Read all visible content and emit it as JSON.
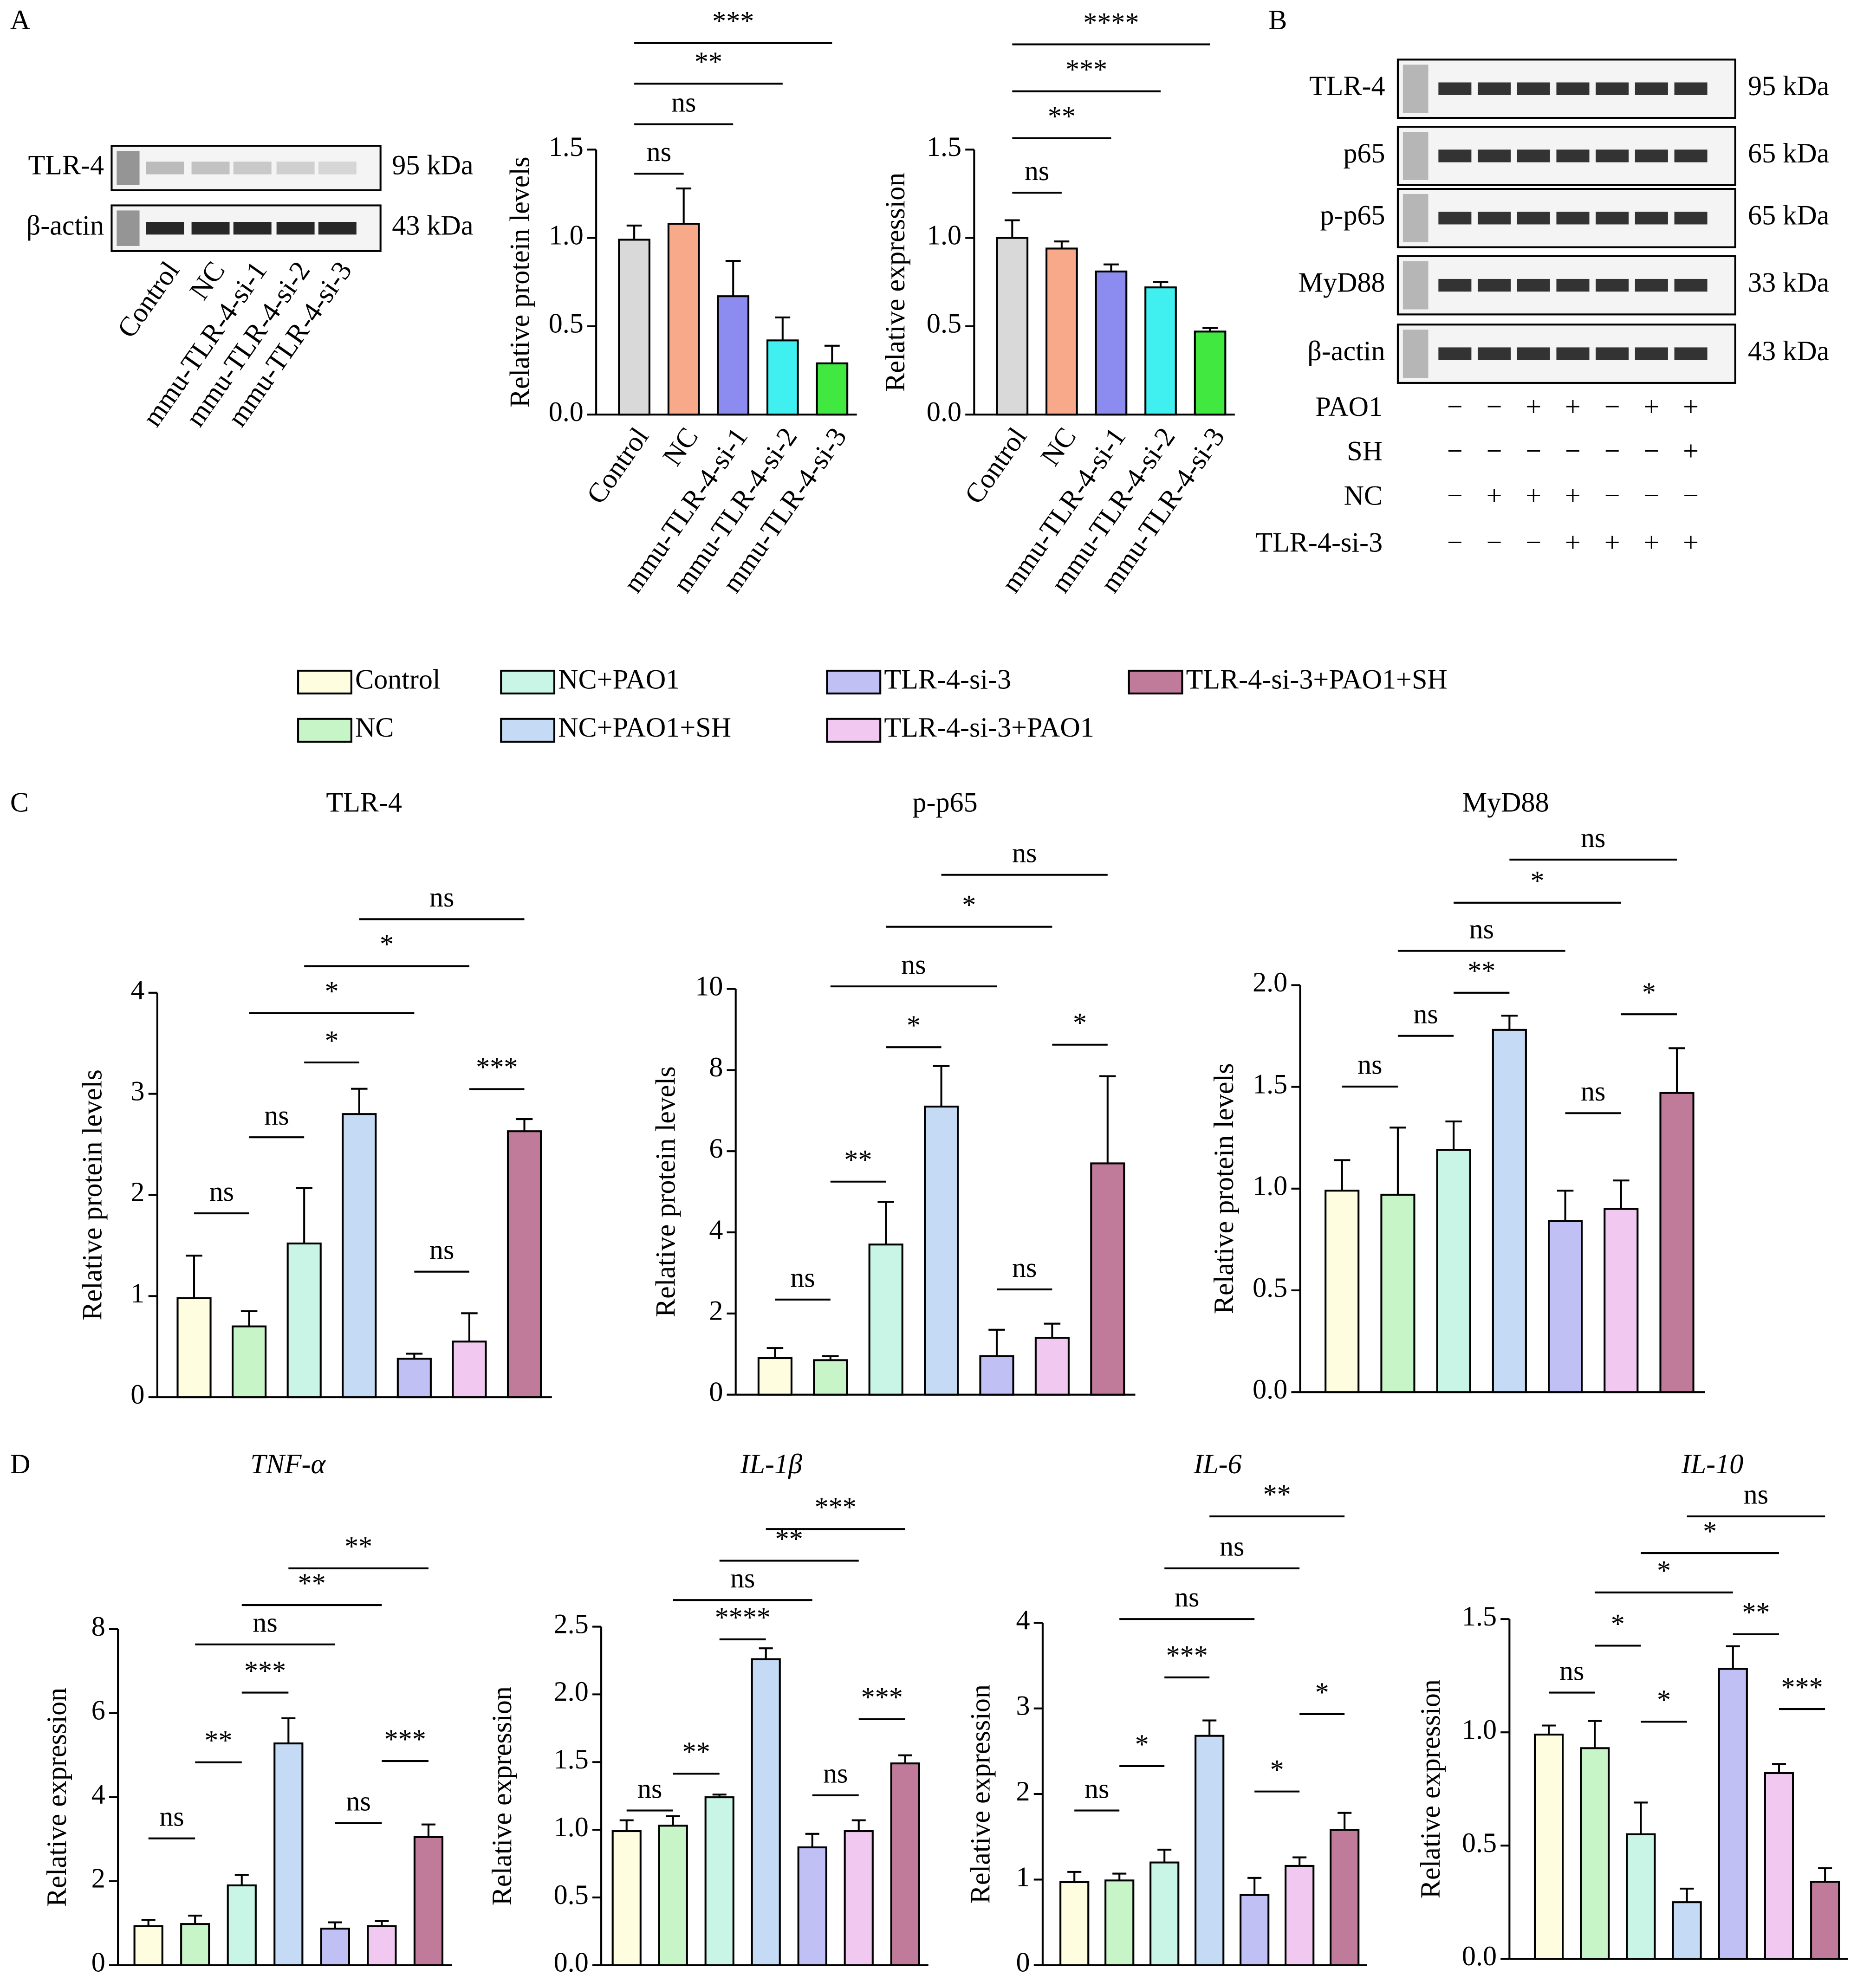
{
  "panel_labels": [
    "A",
    "B",
    "C",
    "D"
  ],
  "blot_a": {
    "proteins": [
      "TLR-4",
      "β-actin"
    ],
    "sizes": [
      "95 kDa",
      "43 kDa"
    ],
    "lanes": [
      "Control",
      "NC",
      "mmu-TLR-4-si-1",
      "mmu-TLR-4-si-2",
      "mmu-TLR-4-si-3"
    ]
  },
  "blot_b": {
    "proteins": [
      "TLR-4",
      "p65",
      "p-p65",
      "MyD88",
      "β-actin"
    ],
    "sizes": [
      "95 kDa",
      "65 kDa",
      "65 kDa",
      "33 kDa",
      "43 kDa"
    ],
    "treatments": [
      {
        "name": "PAO1",
        "signs": [
          "−",
          "−",
          "+",
          "+",
          "−",
          "+",
          "+"
        ]
      },
      {
        "name": "SH",
        "signs": [
          "−",
          "−",
          "−",
          "−",
          "−",
          "−",
          "+"
        ]
      },
      {
        "name": "NC",
        "signs": [
          "−",
          "+",
          "+",
          "+",
          "−",
          "−",
          "−"
        ]
      },
      {
        "name": "TLR-4-si-3",
        "signs": [
          "−",
          "−",
          "−",
          "+",
          "+",
          "+",
          "+"
        ]
      }
    ]
  },
  "legend": {
    "labels": [
      "Control",
      "NC",
      "NC+PAO1",
      "NC+PAO1+SH",
      "TLR-4-si-3",
      "TLR-4-si-3+PAO1",
      "TLR-4-si-3+PAO1+SH"
    ],
    "colors": [
      "#fffde0",
      "#c8f5c8",
      "#c8f5e6",
      "#c5daf5",
      "#c0c0f5",
      "#f0c8f0",
      "#c07a9a"
    ]
  },
  "chart_data": [
    {
      "type": "bar",
      "y_label": "Relative protein levels",
      "categories": [
        "Control",
        "NC",
        "mmu-TLR-4-si-1",
        "mmu-TLR-4-si-2",
        "mmu-TLR-4-si-3"
      ],
      "values": [
        0.99,
        1.08,
        0.67,
        0.42,
        0.29
      ],
      "errors": [
        0.08,
        0.2,
        0.2,
        0.13,
        0.1
      ],
      "colors": [
        "#d9d9d9",
        "#f8a98a",
        "#8c8cf0",
        "#40f0f0",
        "#40e840"
      ],
      "ylim": [
        0,
        1.5
      ],
      "yticks": [
        {
          "value": 0,
          "label": "0.0"
        },
        0.5,
        {
          "value": 1,
          "label": "1.0"
        },
        1.5
      ],
      "annotations": [
        "ns",
        "ns",
        "**",
        "***"
      ]
    },
    {
      "type": "bar",
      "y_label": "Relative expression",
      "categories": [
        "Control",
        "NC",
        "mmu-TLR-4-si-1",
        "mmu-TLR-4-si-2",
        "mmu-TLR-4-si-3"
      ],
      "values": [
        1.0,
        0.94,
        0.81,
        0.72,
        0.47
      ],
      "errors": [
        0.1,
        0.04,
        0.04,
        0.03,
        0.02
      ],
      "colors": [
        "#d9d9d9",
        "#f8a98a",
        "#8c8cf0",
        "#40f0f0",
        "#40e840"
      ],
      "ylim": [
        0,
        1.5
      ],
      "yticks": [
        {
          "value": 0,
          "label": "0.0"
        },
        0.5,
        {
          "value": 1,
          "label": "1.0"
        },
        1.5
      ],
      "annotations": [
        "ns",
        "**",
        "***",
        "****"
      ]
    },
    {
      "type": "bar",
      "title": "TLR-4",
      "y_label": "Relative protein levels",
      "values": [
        0.98,
        0.7,
        1.52,
        2.8,
        0.38,
        0.55,
        2.63
      ],
      "errors": [
        0.42,
        0.15,
        0.55,
        0.25,
        0.05,
        0.28,
        0.12
      ],
      "ylim": [
        0,
        4
      ],
      "yticks": [
        0,
        1,
        2,
        3,
        4
      ],
      "annotations": [
        "ns",
        "ns",
        "*",
        "*",
        "*",
        "ns",
        "ns",
        "***"
      ]
    },
    {
      "type": "bar",
      "title": "p-p65",
      "y_label": "Relative protein levels",
      "values": [
        0.9,
        0.85,
        3.7,
        7.1,
        0.95,
        1.4,
        5.7
      ],
      "errors": [
        0.25,
        0.1,
        1.05,
        1.0,
        0.65,
        0.35,
        2.15
      ],
      "ylim": [
        0,
        10
      ],
      "yticks": [
        0,
        2,
        4,
        6,
        8,
        10
      ],
      "annotations": [
        "ns",
        "**",
        "*",
        "ns",
        "*",
        "ns",
        "ns",
        "*"
      ]
    },
    {
      "type": "bar",
      "title": "MyD88",
      "y_label": "Relative protein levels",
      "values": [
        0.99,
        0.97,
        1.19,
        1.78,
        0.84,
        0.9,
        1.47
      ],
      "errors": [
        0.15,
        0.33,
        0.14,
        0.07,
        0.15,
        0.14,
        0.22
      ],
      "ylim": [
        0,
        2
      ],
      "yticks": [
        {
          "value": 0,
          "label": "0.0"
        },
        0.5,
        {
          "value": 1,
          "label": "1.0"
        },
        1.5,
        {
          "value": 2,
          "label": "2.0"
        }
      ],
      "annotations": [
        "ns",
        "ns",
        "**",
        "ns",
        "*",
        "ns",
        "ns",
        "*"
      ]
    },
    {
      "type": "bar",
      "title": "TNF-α",
      "italic_title": true,
      "y_label": "Relative expression",
      "values": [
        0.93,
        0.98,
        1.9,
        5.28,
        0.87,
        0.93,
        3.05
      ],
      "errors": [
        0.15,
        0.2,
        0.25,
        0.6,
        0.15,
        0.12,
        0.3
      ],
      "ylim": [
        0,
        8
      ],
      "yticks": [
        0,
        2,
        4,
        6,
        8
      ],
      "annotations": [
        "ns",
        "**",
        "***",
        "ns",
        "**",
        "**",
        "ns",
        "***"
      ]
    },
    {
      "type": "bar",
      "title": "IL-1β",
      "italic_title": true,
      "y_label": "Relative expression",
      "values": [
        0.99,
        1.03,
        1.24,
        2.26,
        0.87,
        0.99,
        1.49
      ],
      "errors": [
        0.08,
        0.07,
        0.02,
        0.08,
        0.1,
        0.08,
        0.06
      ],
      "ylim": [
        0,
        2.5
      ],
      "yticks": [
        {
          "value": 0,
          "label": "0.0"
        },
        0.5,
        {
          "value": 1,
          "label": "1.0"
        },
        1.5,
        {
          "value": 2,
          "label": "2.0"
        },
        2.5
      ],
      "annotations": [
        "ns",
        "**",
        "****",
        "ns",
        "**",
        "***",
        "ns",
        "***"
      ]
    },
    {
      "type": "bar",
      "title": "IL-6",
      "italic_title": true,
      "y_label": "Relative expression",
      "values": [
        0.97,
        0.99,
        1.2,
        2.68,
        0.82,
        1.16,
        1.58
      ],
      "errors": [
        0.12,
        0.08,
        0.15,
        0.18,
        0.2,
        0.1,
        0.2
      ],
      "ylim": [
        0,
        4
      ],
      "yticks": [
        0,
        1,
        2,
        3,
        4
      ],
      "annotations": [
        "ns",
        "*",
        "***",
        "ns",
        "ns",
        "**",
        "*",
        "*"
      ]
    },
    {
      "type": "bar",
      "title": "IL-10",
      "italic_title": true,
      "y_label": "Relative expression",
      "values": [
        0.99,
        0.93,
        0.55,
        0.25,
        1.28,
        0.82,
        0.34
      ],
      "errors": [
        0.04,
        0.12,
        0.14,
        0.06,
        0.1,
        0.04,
        0.06
      ],
      "ylim": [
        0,
        1.5
      ],
      "yticks": [
        {
          "value": 0,
          "label": "0.0"
        },
        0.5,
        {
          "value": 1,
          "label": "1.0"
        },
        1.5
      ],
      "annotations": [
        "ns",
        "*",
        "*",
        "*",
        "*",
        "ns",
        "**",
        "***"
      ]
    }
  ]
}
